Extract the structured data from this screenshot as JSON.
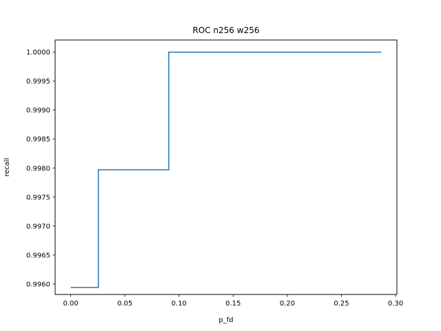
{
  "chart_data": {
    "type": "line",
    "title": "ROC n256  w256",
    "xlabel": "p_fd",
    "ylabel": "recall",
    "xlim": [
      -0.0144,
      0.3012
    ],
    "ylim": [
      0.99582,
      1.00021
    ],
    "xticks": [
      {
        "value": 0.0,
        "label": "0.00"
      },
      {
        "value": 0.05,
        "label": "0.05"
      },
      {
        "value": 0.1,
        "label": "0.10"
      },
      {
        "value": 0.15,
        "label": "0.15"
      },
      {
        "value": 0.2,
        "label": "0.20"
      },
      {
        "value": 0.25,
        "label": "0.25"
      },
      {
        "value": 0.3,
        "label": "0.30"
      }
    ],
    "yticks": [
      {
        "value": 0.996,
        "label": "0.9960"
      },
      {
        "value": 0.9965,
        "label": "0.9965"
      },
      {
        "value": 0.997,
        "label": "0.9970"
      },
      {
        "value": 0.9975,
        "label": "0.9975"
      },
      {
        "value": 0.998,
        "label": "0.9980"
      },
      {
        "value": 0.9985,
        "label": "0.9985"
      },
      {
        "value": 0.999,
        "label": "0.9990"
      },
      {
        "value": 0.9995,
        "label": "0.9995"
      },
      {
        "value": 1.0,
        "label": "1.0000"
      }
    ],
    "grid": false,
    "series": [
      {
        "color": "#1f77b4",
        "x": [
          0.0,
          0.0255,
          0.0255,
          0.0905,
          0.0905,
          0.2868
        ],
        "y": [
          0.99594,
          0.99594,
          0.99797,
          0.99797,
          1.0,
          1.0
        ]
      }
    ]
  }
}
